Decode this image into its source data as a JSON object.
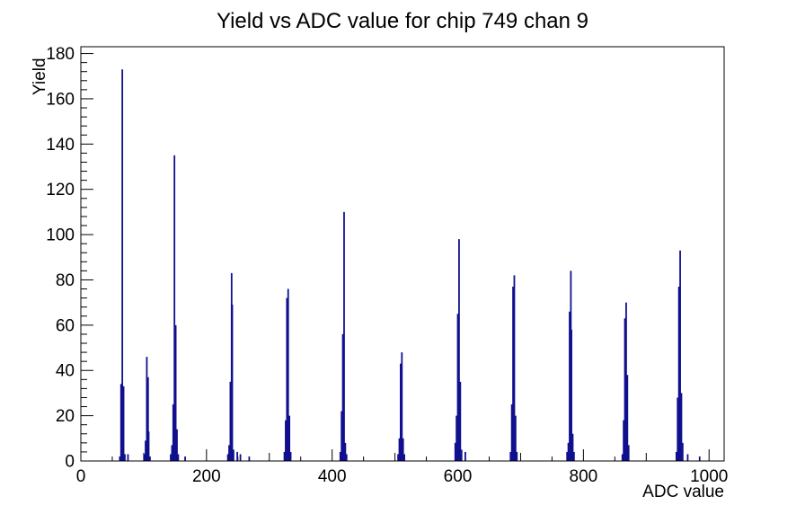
{
  "title": "Yield vs ADC value for chip 749 chan 9",
  "colors": {
    "histogram_line": "#10108f",
    "axis": "#000000",
    "background": "#ffffff"
  },
  "chart_data": {
    "type": "bar",
    "title": "Yield vs ADC value for chip 749 chan 9",
    "xlabel": "ADC value",
    "ylabel": "Yield",
    "xlim": [
      0,
      1024
    ],
    "ylim": [
      0,
      183
    ],
    "grid": false,
    "legend": false,
    "x_tick_labels": [
      0,
      200,
      400,
      600,
      800,
      1000
    ],
    "x_medium_tick_step": 100,
    "x_minor_tick_step": 50,
    "y_tick_labels": [
      0,
      20,
      40,
      60,
      80,
      100,
      120,
      140,
      160,
      180
    ],
    "y_minor_tick_step": 4,
    "bars_note": "each entry is [ADC value, Yield] for a non-empty histogram bin",
    "bars": [
      [
        62,
        2
      ],
      [
        64,
        34
      ],
      [
        66,
        173
      ],
      [
        68,
        33
      ],
      [
        70,
        3
      ],
      [
        75,
        3
      ],
      [
        101,
        3
      ],
      [
        103,
        9
      ],
      [
        105,
        46
      ],
      [
        107,
        37
      ],
      [
        108,
        13
      ],
      [
        110,
        2
      ],
      [
        143,
        3
      ],
      [
        145,
        7
      ],
      [
        147,
        25
      ],
      [
        149,
        135
      ],
      [
        151,
        60
      ],
      [
        153,
        14
      ],
      [
        155,
        3
      ],
      [
        166,
        2
      ],
      [
        234,
        3
      ],
      [
        236,
        7
      ],
      [
        238,
        35
      ],
      [
        240,
        83
      ],
      [
        241,
        69
      ],
      [
        243,
        5
      ],
      [
        249,
        4
      ],
      [
        254,
        3
      ],
      [
        268,
        2
      ],
      [
        324,
        4
      ],
      [
        326,
        18
      ],
      [
        328,
        72
      ],
      [
        330,
        76
      ],
      [
        332,
        20
      ],
      [
        334,
        4
      ],
      [
        413,
        4
      ],
      [
        415,
        22
      ],
      [
        417,
        56
      ],
      [
        419,
        110
      ],
      [
        421,
        8
      ],
      [
        423,
        3
      ],
      [
        505,
        3
      ],
      [
        507,
        10
      ],
      [
        509,
        43
      ],
      [
        511,
        48
      ],
      [
        513,
        10
      ],
      [
        515,
        3
      ],
      [
        596,
        8
      ],
      [
        598,
        20
      ],
      [
        600,
        65
      ],
      [
        602,
        98
      ],
      [
        604,
        35
      ],
      [
        606,
        5
      ],
      [
        612,
        4
      ],
      [
        684,
        4
      ],
      [
        686,
        25
      ],
      [
        688,
        77
      ],
      [
        690,
        82
      ],
      [
        692,
        20
      ],
      [
        694,
        4
      ],
      [
        774,
        4
      ],
      [
        776,
        8
      ],
      [
        778,
        66
      ],
      [
        780,
        84
      ],
      [
        781,
        58
      ],
      [
        783,
        12
      ],
      [
        785,
        4
      ],
      [
        862,
        3
      ],
      [
        864,
        18
      ],
      [
        866,
        63
      ],
      [
        868,
        70
      ],
      [
        870,
        38
      ],
      [
        872,
        7
      ],
      [
        948,
        4
      ],
      [
        950,
        28
      ],
      [
        952,
        77
      ],
      [
        954,
        93
      ],
      [
        956,
        30
      ],
      [
        958,
        8
      ],
      [
        966,
        3
      ],
      [
        985,
        2
      ]
    ],
    "peak_summary": [
      {
        "adc": 66,
        "yield": 173
      },
      {
        "adc": 105,
        "yield": 46
      },
      {
        "adc": 149,
        "yield": 135
      },
      {
        "adc": 240,
        "yield": 83
      },
      {
        "adc": 330,
        "yield": 76
      },
      {
        "adc": 419,
        "yield": 110
      },
      {
        "adc": 511,
        "yield": 48
      },
      {
        "adc": 602,
        "yield": 98
      },
      {
        "adc": 690,
        "yield": 82
      },
      {
        "adc": 780,
        "yield": 84
      },
      {
        "adc": 868,
        "yield": 70
      },
      {
        "adc": 954,
        "yield": 93
      }
    ]
  }
}
